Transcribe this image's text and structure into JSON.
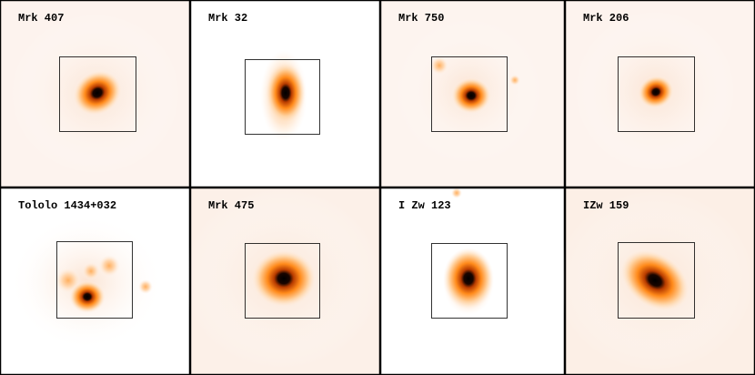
{
  "panels": [
    {
      "label": "Mrk 407"
    },
    {
      "label": "Mrk 32"
    },
    {
      "label": "Mrk 750"
    },
    {
      "label": "Mrk 206"
    },
    {
      "label": "Tololo 1434+032"
    },
    {
      "label": "Mrk 475"
    },
    {
      "label": "I Zw 123"
    },
    {
      "label": "IZw 159"
    }
  ]
}
